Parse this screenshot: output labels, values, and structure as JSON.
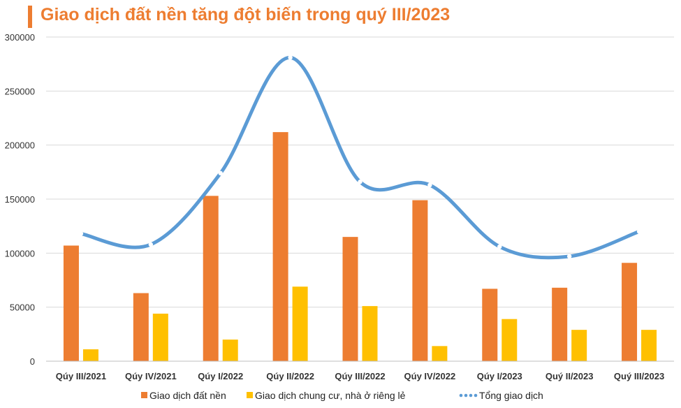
{
  "chart_data": {
    "type": "bar",
    "title": "Giao dịch đất nền tăng đột biến trong quý III/2023",
    "categories": [
      "Qúy III/2021",
      "Qúy IV/2021",
      "Qúy I/2022",
      "Qúy II/2022",
      "Qúy III/2022",
      "Qúy IV/2022",
      "Qúy I/2023",
      "Quý II/2023",
      "Quý III/2023"
    ],
    "ylim": [
      0,
      300000
    ],
    "yticks": [
      "0",
      "50000",
      "100000",
      "150000",
      "200000",
      "250000",
      "300000"
    ],
    "ytick_values": [
      0,
      50000,
      100000,
      150000,
      200000,
      250000,
      300000
    ],
    "grid": true,
    "legend_position": "bottom",
    "series": [
      {
        "name": "Giao dịch đất nền",
        "kind": "bar",
        "color": "#ED7D31",
        "values": [
          107000,
          63000,
          153000,
          212000,
          115000,
          149000,
          67000,
          68000,
          91000
        ]
      },
      {
        "name": "Giao dịch chung cư, nhà ở riêng lẻ",
        "kind": "bar",
        "color": "#FFC000",
        "values": [
          11000,
          44000,
          20000,
          69000,
          51000,
          14000,
          39000,
          29000,
          29000
        ]
      },
      {
        "name": "Tổng giao dịch",
        "kind": "line",
        "color": "#5B9BD5",
        "values": [
          118000,
          108000,
          174000,
          281000,
          166000,
          163000,
          106000,
          97000,
          120000
        ]
      }
    ]
  }
}
